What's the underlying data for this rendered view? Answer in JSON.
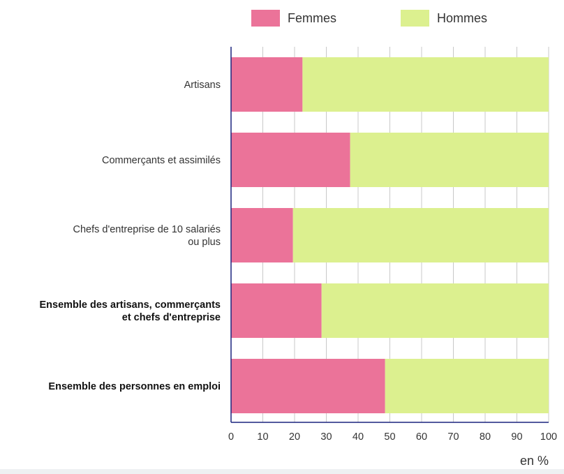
{
  "colors": {
    "femmes": "#eb7399",
    "hommes": "#dcf08f",
    "axis": "#1a237e",
    "grid": "#c8c8c8",
    "text": "#333333",
    "label": "#222222"
  },
  "chart_data": {
    "type": "bar",
    "orientation": "horizontal",
    "stacked": true,
    "categories": [
      "Artisans",
      "Commerçants et assimilés",
      "Chefs d'entreprise de 10 salariés ou plus",
      "Ensemble des artisans, commerçants et chefs d'entreprise",
      "Ensemble des personnes en emploi"
    ],
    "category_lines": [
      [
        "Artisans"
      ],
      [
        "Commerçants et assimilés"
      ],
      [
        "Chefs d'entreprise de 10 salariés",
        "ou plus"
      ],
      [
        "Ensemble des artisans, commerçants",
        "et chefs d'entreprise"
      ],
      [
        "Ensemble des personnes en emploi"
      ]
    ],
    "bold_categories": [
      false,
      false,
      false,
      true,
      true
    ],
    "series": [
      {
        "name": "Femmes",
        "values": [
          22.5,
          37.5,
          19.5,
          28.5,
          48.5
        ]
      },
      {
        "name": "Hommes",
        "values": [
          77.5,
          62.5,
          80.5,
          71.5,
          51.5
        ]
      }
    ],
    "xlim": [
      0,
      100
    ],
    "xticks": [
      0,
      10,
      20,
      30,
      40,
      50,
      60,
      70,
      80,
      90,
      100
    ],
    "xlabel": "en %",
    "ylabel": "",
    "title": "",
    "grid": true,
    "legend_position": "top"
  }
}
